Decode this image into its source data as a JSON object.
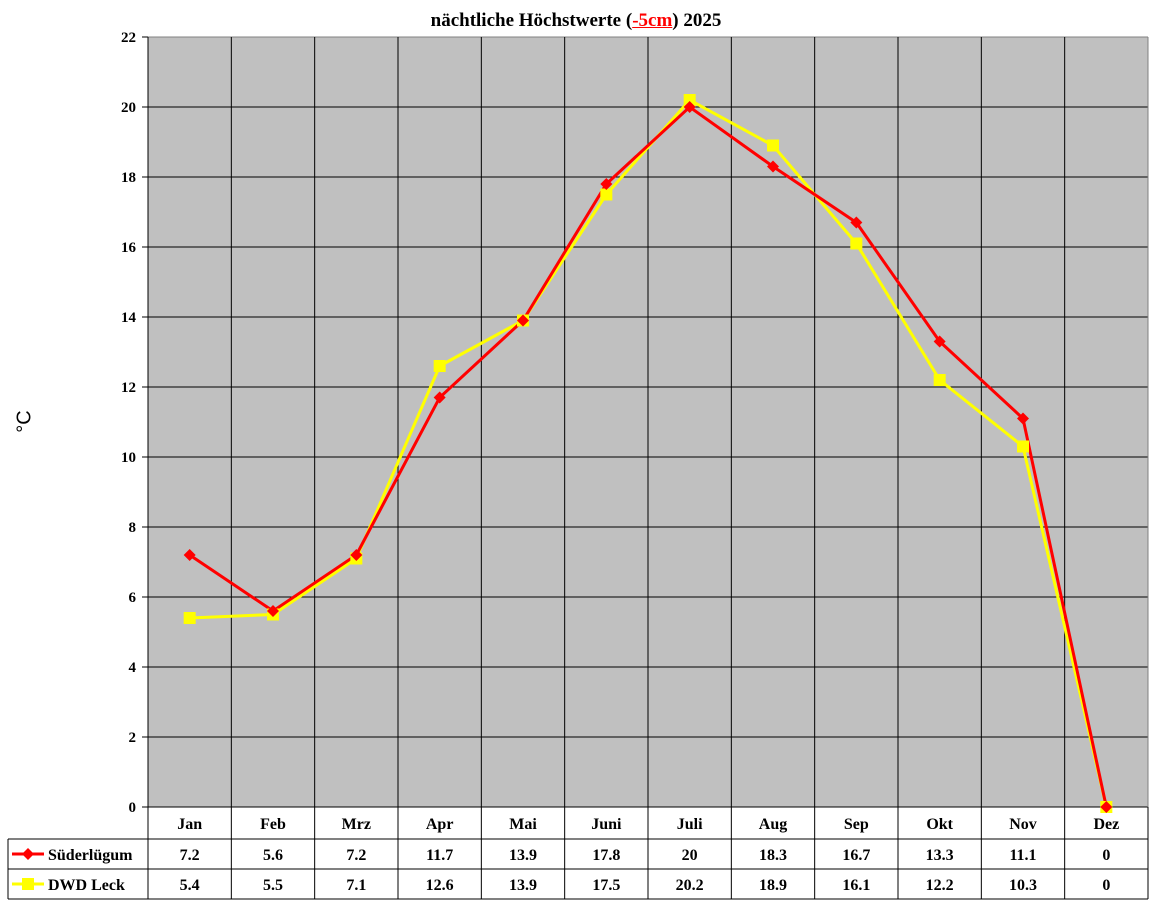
{
  "title": {
    "prefix": "nächtliche Höchstwerte (",
    "depth": "-5cm",
    "suffix": ") 2025"
  },
  "colors": {
    "plot_bg": "#c0c0c0",
    "grid": "#000000",
    "series_1": "#ff0000",
    "series_2": "#ffff00"
  },
  "chart_data": {
    "type": "line",
    "title": "nächtliche Höchstwerte (-5cm) 2025",
    "xlabel": "",
    "ylabel": "°C",
    "ylim": [
      0,
      22
    ],
    "yticks": [
      0,
      2,
      4,
      6,
      8,
      10,
      12,
      14,
      16,
      18,
      20,
      22
    ],
    "grid": true,
    "legend_position": "data-table-left",
    "categories": [
      "Jan",
      "Feb",
      "Mrz",
      "Apr",
      "Mai",
      "Juni",
      "Juli",
      "Aug",
      "Sep",
      "Okt",
      "Nov",
      "Dez"
    ],
    "series": [
      {
        "name": "Süderlügum",
        "color": "#ff0000",
        "marker": "diamond",
        "values": [
          7.2,
          5.6,
          7.2,
          11.7,
          13.9,
          17.8,
          20,
          18.3,
          16.7,
          13.3,
          11.1,
          0
        ]
      },
      {
        "name": "DWD Leck",
        "color": "#ffff00",
        "marker": "square",
        "values": [
          5.4,
          5.5,
          7.1,
          12.6,
          13.9,
          17.5,
          20.2,
          18.9,
          16.1,
          12.2,
          10.3,
          0
        ]
      }
    ]
  }
}
